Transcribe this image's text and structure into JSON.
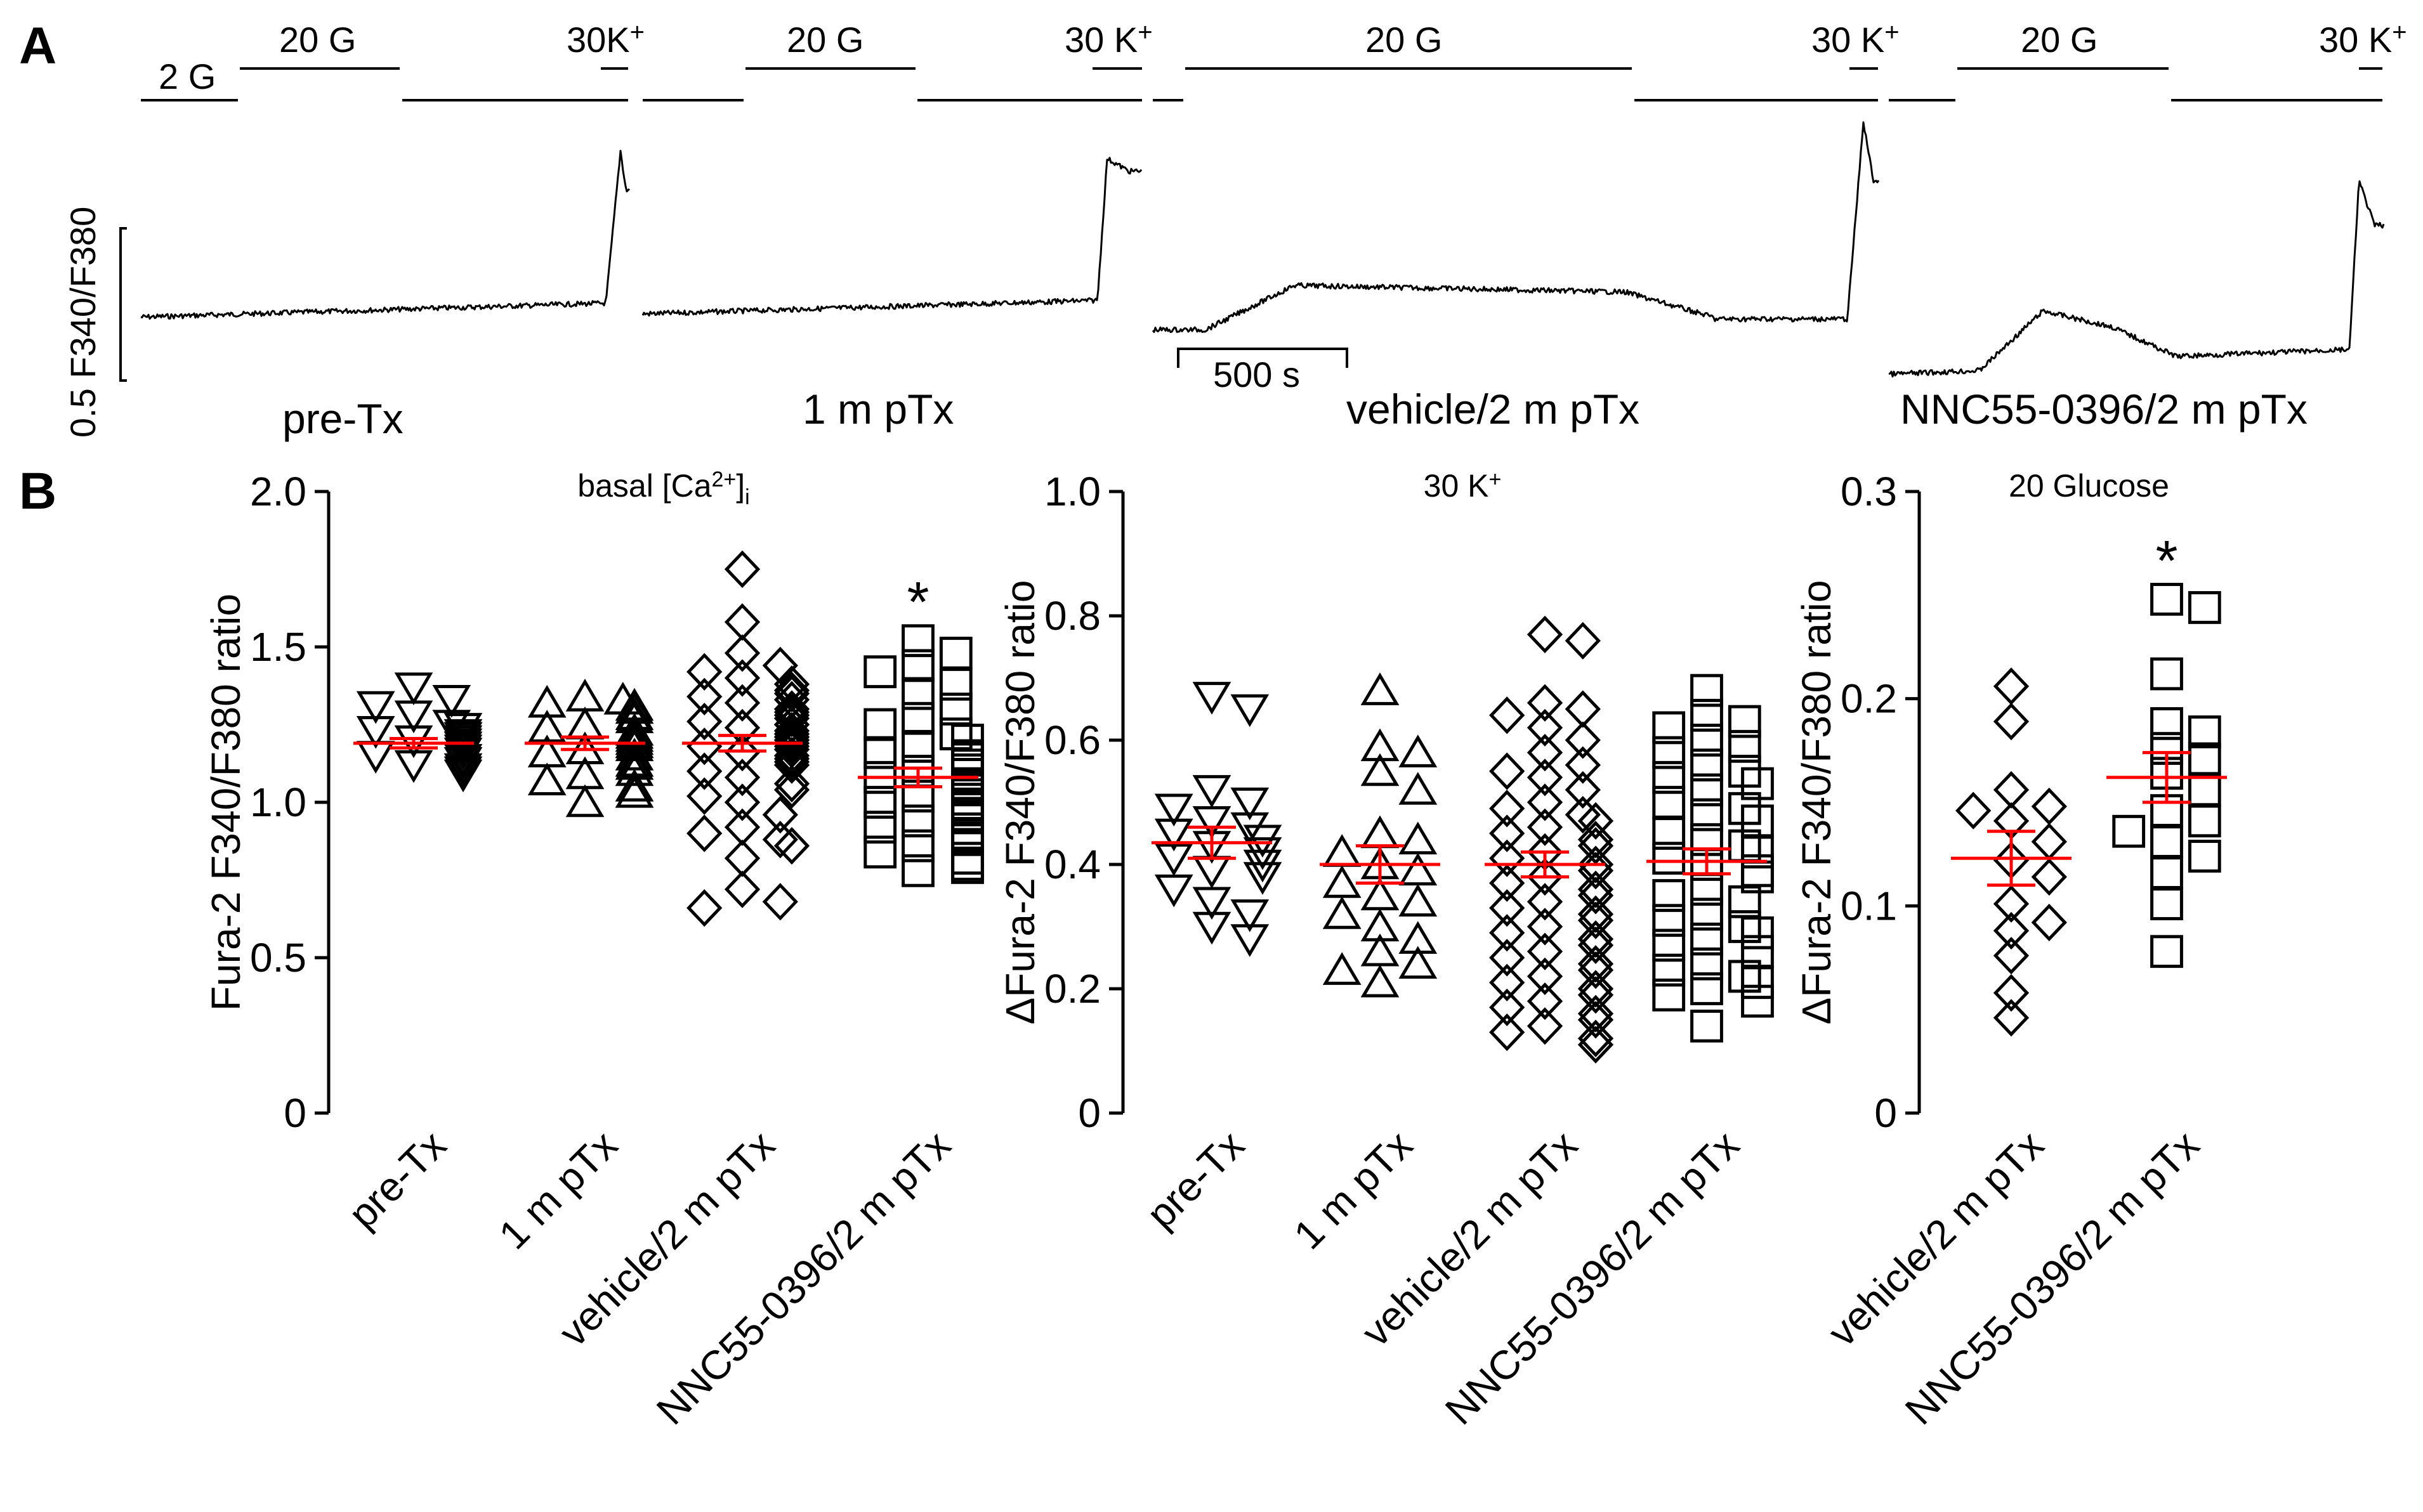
{
  "panel_a": {
    "label": "A",
    "scale_bar_y": "0.5 F340/F380",
    "scale_bar_time": "500 s",
    "traces": [
      {
        "condition": "pre-Tx",
        "bars": [
          {
            "label": "2 G"
          },
          {
            "label": "20 G"
          },
          {
            "label": "30K",
            "sup": "+"
          }
        ]
      },
      {
        "condition": "1 m pTx",
        "bars": [
          {
            "label": "20 G"
          },
          {
            "label": "30 K",
            "sup": "+"
          }
        ]
      },
      {
        "condition": "vehicle/2 m pTx",
        "bars": [
          {
            "label": "20 G"
          },
          {
            "label": "30 K",
            "sup": "+"
          }
        ]
      },
      {
        "condition": "NNC55-0396/2 m pTx",
        "bars": [
          {
            "label": "20 G"
          },
          {
            "label": "30 K",
            "sup": "+"
          }
        ]
      }
    ]
  },
  "panel_b": {
    "label": "B"
  },
  "colors": {
    "mean_sem": "#ff0000",
    "markers": "#000000"
  },
  "chart_data": [
    {
      "type": "scatter",
      "title_main": "basal [Ca",
      "title_sup": "2+",
      "title_end": "]",
      "title_sub": "i",
      "ylabel": "Fura-2 F340/F380 ratio",
      "ylim": [
        0,
        2.0
      ],
      "yticks": [
        "0",
        "0.5",
        "1.0",
        "1.5",
        "2.0"
      ],
      "ytick_values": [
        0,
        0.5,
        1.0,
        1.5,
        2.0
      ],
      "significance": [
        {
          "group": "NNC55-0396/2 m pTx",
          "label": "*"
        }
      ],
      "groups": [
        {
          "name": "pre-Tx",
          "marker": "triangle-down",
          "mean": 1.19,
          "sem": 0.015,
          "values": [
            1.37,
            1.33,
            1.31,
            1.28,
            1.25,
            1.24,
            1.23,
            1.22,
            1.21,
            1.21,
            1.2,
            1.19,
            1.18,
            1.17,
            1.16,
            1.15,
            1.14,
            1.13,
            1.12,
            1.11,
            1.1,
            1.09,
            1.21,
            1.2,
            1.18,
            1.13
          ]
        },
        {
          "name": "1 m pTx",
          "marker": "triangle-up",
          "mean": 1.19,
          "sem": 0.02,
          "values": [
            1.34,
            1.33,
            1.32,
            1.31,
            1.3,
            1.28,
            1.27,
            1.25,
            1.24,
            1.23,
            1.22,
            1.2,
            1.19,
            1.18,
            1.17,
            1.16,
            1.15,
            1.13,
            1.12,
            1.1,
            1.09,
            1.07,
            1.05,
            1.03,
            1.0,
            1.21,
            1.19
          ]
        },
        {
          "name": "vehicle/2 m pTx",
          "marker": "diamond",
          "mean": 1.19,
          "sem": 0.025,
          "values": [
            1.75,
            1.58,
            1.48,
            1.44,
            1.42,
            1.4,
            1.38,
            1.36,
            1.35,
            1.34,
            1.33,
            1.32,
            1.3,
            1.29,
            1.28,
            1.27,
            1.26,
            1.25,
            1.24,
            1.23,
            1.22,
            1.22,
            1.21,
            1.2,
            1.2,
            1.19,
            1.18,
            1.18,
            1.17,
            1.16,
            1.15,
            1.14,
            1.13,
            1.12,
            1.1,
            1.08,
            1.06,
            1.04,
            1.02,
            1.0,
            0.96,
            0.92,
            0.9,
            0.88,
            0.86,
            0.82,
            0.72,
            0.68,
            0.66,
            1.25,
            1.21,
            1.17
          ]
        },
        {
          "name": "NNC55-0396/2 m pTx",
          "marker": "square",
          "mean": 1.08,
          "sem": 0.03,
          "values": [
            1.52,
            1.48,
            1.44,
            1.42,
            1.38,
            1.35,
            1.3,
            1.27,
            1.25,
            1.22,
            1.2,
            1.18,
            1.16,
            1.14,
            1.12,
            1.1,
            1.08,
            1.06,
            1.05,
            1.04,
            1.02,
            1.0,
            0.99,
            0.98,
            0.96,
            0.94,
            0.92,
            0.9,
            0.88,
            0.86,
            0.84,
            0.82,
            0.8,
            0.79,
            0.78,
            1.15,
            1.09,
            1.01,
            0.95
          ]
        }
      ]
    },
    {
      "type": "scatter",
      "title_main": "30 K",
      "title_sup": "+",
      "title_end": "",
      "title_sub": "",
      "ylabel": "ΔFura-2 F340/F380 ratio",
      "ylim": [
        0,
        1.0
      ],
      "yticks": [
        "0",
        "0.2",
        "0.4",
        "0.6",
        "0.8",
        "1.0"
      ],
      "ytick_values": [
        0,
        0.2,
        0.4,
        0.6,
        0.8,
        1.0
      ],
      "significance": [],
      "groups": [
        {
          "name": "pre-Tx",
          "marker": "triangle-down",
          "mean": 0.435,
          "sem": 0.025,
          "values": [
            0.67,
            0.65,
            0.52,
            0.5,
            0.49,
            0.47,
            0.46,
            0.45,
            0.44,
            0.43,
            0.42,
            0.41,
            0.4,
            0.39,
            0.38,
            0.36,
            0.34,
            0.32,
            0.3,
            0.28
          ]
        },
        {
          "name": "1 m pTx",
          "marker": "triangle-up",
          "mean": 0.4,
          "sem": 0.03,
          "values": [
            0.68,
            0.59,
            0.58,
            0.55,
            0.52,
            0.45,
            0.44,
            0.42,
            0.4,
            0.39,
            0.37,
            0.35,
            0.34,
            0.32,
            0.3,
            0.28,
            0.26,
            0.24,
            0.23,
            0.21
          ]
        },
        {
          "name": "vehicle/2 m pTx",
          "marker": "diamond",
          "mean": 0.4,
          "sem": 0.02,
          "values": [
            0.77,
            0.76,
            0.66,
            0.65,
            0.64,
            0.62,
            0.6,
            0.58,
            0.56,
            0.55,
            0.54,
            0.52,
            0.5,
            0.49,
            0.48,
            0.47,
            0.46,
            0.45,
            0.44,
            0.43,
            0.42,
            0.41,
            0.4,
            0.39,
            0.38,
            0.37,
            0.36,
            0.35,
            0.34,
            0.33,
            0.32,
            0.31,
            0.3,
            0.29,
            0.28,
            0.27,
            0.26,
            0.25,
            0.24,
            0.23,
            0.22,
            0.21,
            0.2,
            0.19,
            0.18,
            0.17,
            0.16,
            0.15,
            0.14,
            0.13,
            0.12,
            0.11
          ]
        },
        {
          "name": "NNC55-0396/2 m pTx",
          "marker": "square",
          "mean": 0.405,
          "sem": 0.02,
          "values": [
            0.68,
            0.64,
            0.63,
            0.62,
            0.6,
            0.59,
            0.58,
            0.56,
            0.55,
            0.54,
            0.53,
            0.52,
            0.5,
            0.49,
            0.48,
            0.47,
            0.45,
            0.44,
            0.43,
            0.42,
            0.41,
            0.4,
            0.39,
            0.38,
            0.36,
            0.35,
            0.34,
            0.32,
            0.31,
            0.3,
            0.29,
            0.28,
            0.27,
            0.26,
            0.24,
            0.23,
            0.22,
            0.21,
            0.2,
            0.19,
            0.18,
            0.14
          ]
        }
      ]
    },
    {
      "type": "scatter",
      "title_main": "20 Glucose",
      "title_sup": "",
      "title_end": "",
      "title_sub": "",
      "ylabel": "ΔFura-2 F340/F380 ratio",
      "ylim": [
        0,
        0.3
      ],
      "yticks": [
        "0",
        "0.1",
        "0.2",
        "0.3"
      ],
      "ytick_values": [
        0,
        0.1,
        0.2,
        0.3
      ],
      "significance": [
        {
          "group": "NNC55-0396/2 m pTx",
          "label": "*"
        }
      ],
      "groups": [
        {
          "name": "vehicle/2 m pTx",
          "marker": "diamond",
          "mean": 0.123,
          "sem": 0.013,
          "values": [
            0.206,
            0.189,
            0.156,
            0.148,
            0.146,
            0.141,
            0.131,
            0.122,
            0.114,
            0.101,
            0.092,
            0.088,
            0.076,
            0.058,
            0.046
          ]
        },
        {
          "name": "NNC55-0396/2 m pTx",
          "marker": "square",
          "mean": 0.162,
          "sem": 0.012,
          "values": [
            0.248,
            0.244,
            0.212,
            0.188,
            0.184,
            0.176,
            0.171,
            0.164,
            0.156,
            0.146,
            0.141,
            0.136,
            0.131,
            0.124,
            0.116,
            0.101,
            0.078
          ]
        }
      ]
    }
  ]
}
